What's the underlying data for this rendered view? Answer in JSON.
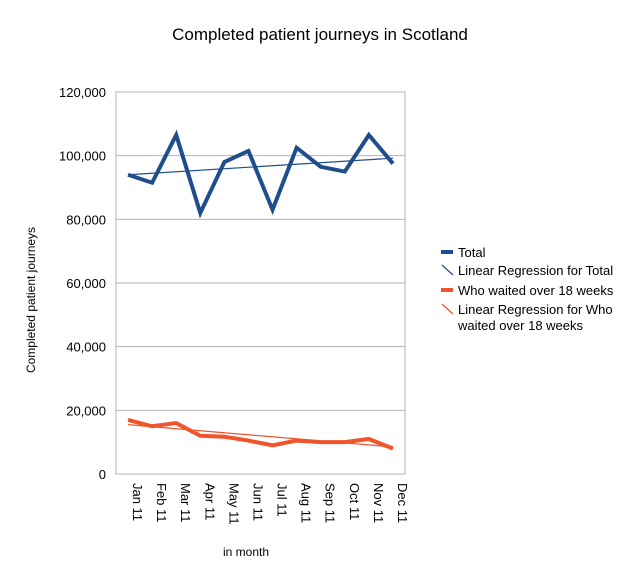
{
  "chart_data": {
    "type": "line",
    "title": "Completed patient journeys in Scotland",
    "xlabel": "in month",
    "ylabel": "Completed patient journeys",
    "ylim": [
      0,
      120000
    ],
    "yticks": [
      "0",
      "20,000",
      "40,000",
      "60,000",
      "80,000",
      "100,000",
      "120,000"
    ],
    "ytick_values": [
      0,
      20000,
      40000,
      60000,
      80000,
      100000,
      120000
    ],
    "categories": [
      "Jan 11",
      "Feb 11",
      "Mar 11",
      "Apr 11",
      "May 11",
      "Jun 11",
      "Jul 11",
      "Aug 11",
      "Sep 11",
      "Oct 11",
      "Nov 11",
      "Dec 11"
    ],
    "grid": true,
    "legend_position": "right",
    "series": [
      {
        "name": "Total",
        "color": "#1f4e8c",
        "values": [
          94000,
          91500,
          106500,
          82000,
          98000,
          101500,
          83000,
          102500,
          96500,
          95000,
          106500,
          97500
        ]
      },
      {
        "name": "Who waited over 18 weeks",
        "color": "#f0542a",
        "values": [
          17000,
          15000,
          16000,
          12000,
          11700,
          10500,
          9000,
          10500,
          10000,
          10000,
          11000,
          8000
        ]
      }
    ],
    "trendlines": [
      {
        "name": "Linear Regression for Total",
        "color": "#1f4e8c",
        "start": 94000,
        "end": 99200
      },
      {
        "name": "Linear Regression for Who waited over 18 weeks",
        "color": "#f0542a",
        "start": 15500,
        "end": 8500
      }
    ],
    "legend": [
      {
        "label": "Total",
        "color": "#1f4e8c",
        "kind": "series"
      },
      {
        "label": "Linear Regression for Total",
        "color": "#1f4e8c",
        "kind": "trend"
      },
      {
        "label": "Who waited over 18 weeks",
        "color": "#f0542a",
        "kind": "series"
      },
      {
        "label": "Linear Regression for Who waited over 18 weeks",
        "color": "#f0542a",
        "kind": "trend"
      }
    ]
  }
}
